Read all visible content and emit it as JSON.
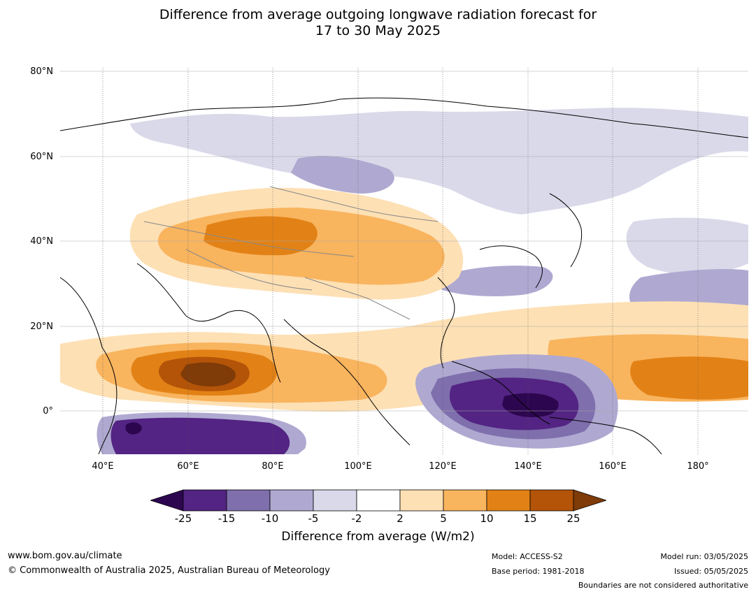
{
  "title": {
    "line1": "Difference from average outgoing longwave radiation forecast for",
    "line2": "17 to 30 May 2025"
  },
  "map": {
    "lat_labels": [
      "80°N",
      "60°N",
      "40°N",
      "20°N",
      "0°"
    ],
    "lon_labels": [
      "40°E",
      "60°E",
      "80°E",
      "100°E",
      "120°E",
      "140°E",
      "160°E",
      "180°"
    ]
  },
  "colorbar": {
    "ticks": [
      "-25",
      "-15",
      "-10",
      "-5",
      "-2",
      "2",
      "5",
      "10",
      "15",
      "25"
    ],
    "colors": [
      "#2d0650",
      "#532483",
      "#7f6fad",
      "#afa9d1",
      "#d9d9ea",
      "#ffffff",
      "#fde0b4",
      "#f9b45e",
      "#e28216",
      "#b35408",
      "#7f3b08"
    ],
    "label": "Difference from average (W/m2)"
  },
  "footer": {
    "url": "www.bom.gov.au/climate",
    "copyright": "© Commonwealth of Australia 2025, Australian Bureau of Meteorology",
    "model": "Model: ACCESS-S2",
    "base_period": "Base period: 1981-2018",
    "model_run": "Model run: 03/05/2025",
    "issued": "Issued: 05/05/2025",
    "disclaimer": "Boundaries are not considered authoritative"
  }
}
